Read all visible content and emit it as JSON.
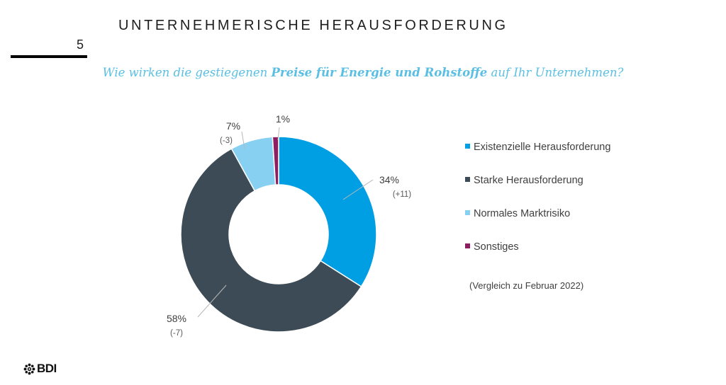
{
  "header": {
    "title": "UNTERNEHMERISCHE HERAUSFORDERUNG",
    "page_number": "5"
  },
  "question": {
    "before": "Wie wirken die gestiegenen ",
    "highlight": "Preise für Energie und Rohstoffe",
    "after": " auf Ihr Unternehmen?"
  },
  "chart_data": {
    "type": "pie",
    "variant": "donut",
    "categories": [
      "Existenzielle Herausforderung",
      "Starke Herausforderung",
      "Normales Marktrisiko",
      "Sonstiges"
    ],
    "values": [
      34,
      58,
      7,
      1
    ],
    "value_labels": [
      "34%",
      "58%",
      "7%",
      "1%"
    ],
    "change_labels": [
      "(+11)",
      "(-7)",
      "(-3)",
      ""
    ],
    "colors": [
      "#009fe3",
      "#3c4b55",
      "#87d0f2",
      "#8b1f5f"
    ],
    "legend_position": "right",
    "note": "(Vergleich zu Februar 2022)"
  },
  "footer": {
    "logo_text": "BDI"
  }
}
